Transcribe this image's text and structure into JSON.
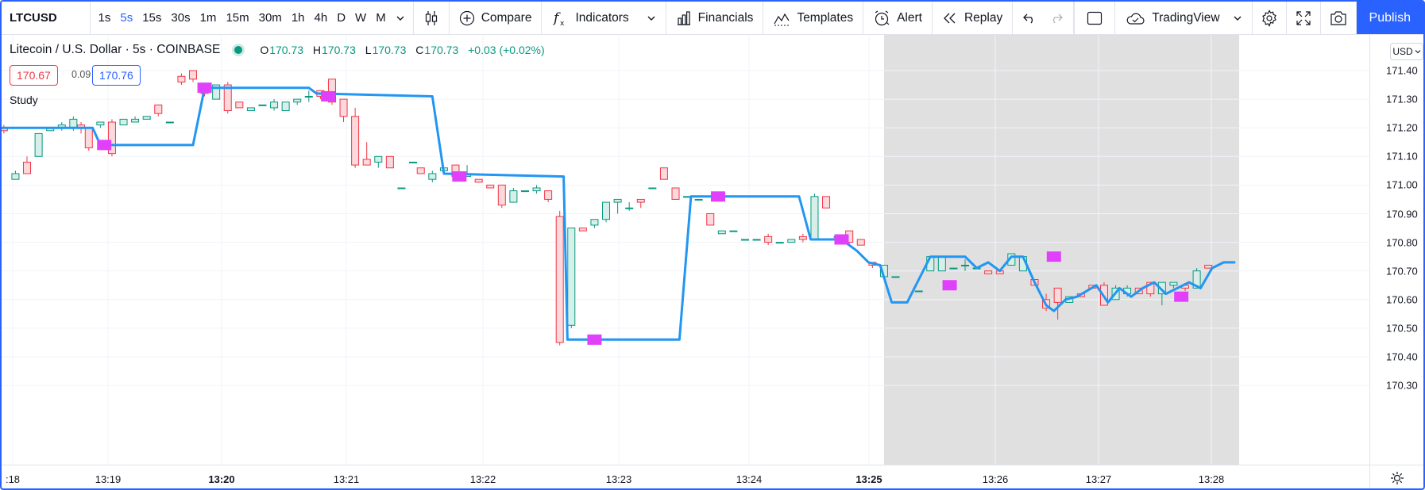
{
  "toolbar": {
    "symbol": "LTCUSD",
    "timeframes": [
      "1s",
      "5s",
      "15s",
      "30s",
      "1m",
      "15m",
      "30m",
      "1h",
      "4h",
      "D",
      "W",
      "M"
    ],
    "active_timeframe": "5s",
    "compare": "Compare",
    "indicators": "Indicators",
    "financials": "Financials",
    "templates": "Templates",
    "alert": "Alert",
    "replay": "Replay",
    "layout_name": "TradingView",
    "publish": "Publish"
  },
  "legend": {
    "title": "Litecoin / U.S. Dollar · 5s · COINBASE",
    "open": "170.73",
    "high": "170.73",
    "low": "170.73",
    "close": "170.73",
    "change": "+0.03 (+0.02%)",
    "bid": "170.67",
    "spread": "0.09",
    "ask": "170.76",
    "study": "Study"
  },
  "currency": "USD",
  "colors": {
    "accent": "#2962ff",
    "up": "#089981",
    "down": "#f23645",
    "study_line": "#2196f3",
    "marker": "#e040fb",
    "session_shade": "#dadada"
  },
  "chart_data": {
    "type": "candlestick",
    "y_ticks": [
      "171.40",
      "171.30",
      "171.20",
      "171.10",
      "171.00",
      "170.90",
      "170.80",
      "170.70",
      "170.60",
      "170.50",
      "170.40",
      "170.30"
    ],
    "ylim": [
      170.2,
      171.46
    ],
    "x_ticks": [
      {
        "label": ":18",
        "bold": false
      },
      {
        "label": "13:19",
        "bold": false
      },
      {
        "label": "13:20",
        "bold": true
      },
      {
        "label": "13:21",
        "bold": false
      },
      {
        "label": "13:22",
        "bold": false
      },
      {
        "label": "13:23",
        "bold": false
      },
      {
        "label": "13:24",
        "bold": false
      },
      {
        "label": "13:25",
        "bold": true
      },
      {
        "label": "13:26",
        "bold": false
      },
      {
        "label": "13:27",
        "bold": false
      },
      {
        "label": "13:28",
        "bold": false
      }
    ],
    "candles": [
      {
        "t": 0.5,
        "o": 171.2,
        "h": 171.21,
        "l": 171.18,
        "c": 171.19
      },
      {
        "t": 2,
        "o": 171.02,
        "h": 171.05,
        "l": 171.02,
        "c": 171.04
      },
      {
        "t": 3.5,
        "o": 171.08,
        "h": 171.1,
        "l": 171.04,
        "c": 171.04
      },
      {
        "t": 5,
        "o": 171.1,
        "h": 171.18,
        "l": 171.1,
        "c": 171.18
      },
      {
        "t": 6.5,
        "o": 171.19,
        "h": 171.2,
        "l": 171.19,
        "c": 171.2
      },
      {
        "t": 8,
        "o": 171.2,
        "h": 171.22,
        "l": 171.19,
        "c": 171.21
      },
      {
        "t": 9.5,
        "o": 171.2,
        "h": 171.24,
        "l": 171.19,
        "c": 171.23
      },
      {
        "t": 10.5,
        "o": 171.21,
        "h": 171.22,
        "l": 171.18,
        "c": 171.2
      },
      {
        "t": 11.5,
        "o": 171.2,
        "h": 171.2,
        "l": 171.12,
        "c": 171.13
      },
      {
        "t": 13,
        "o": 171.21,
        "h": 171.22,
        "l": 171.2,
        "c": 171.22
      },
      {
        "t": 14.5,
        "o": 171.22,
        "h": 171.23,
        "l": 171.1,
        "c": 171.11
      },
      {
        "t": 16,
        "o": 171.21,
        "h": 171.23,
        "l": 171.21,
        "c": 171.23
      },
      {
        "t": 17.5,
        "o": 171.22,
        "h": 171.24,
        "l": 171.22,
        "c": 171.23
      },
      {
        "t": 19,
        "o": 171.23,
        "h": 171.24,
        "l": 171.23,
        "c": 171.24
      },
      {
        "t": 20.5,
        "o": 171.28,
        "h": 171.28,
        "l": 171.24,
        "c": 171.25
      },
      {
        "t": 22,
        "o": 171.22,
        "h": 171.22,
        "l": 171.22,
        "c": 171.22
      },
      {
        "t": 23.5,
        "o": 171.38,
        "h": 171.39,
        "l": 171.35,
        "c": 171.36
      },
      {
        "t": 25,
        "o": 171.4,
        "h": 171.4,
        "l": 171.36,
        "c": 171.37
      },
      {
        "t": 26.5,
        "o": 171.34,
        "h": 171.35,
        "l": 171.31,
        "c": 171.32
      },
      {
        "t": 28,
        "o": 171.3,
        "h": 171.35,
        "l": 171.3,
        "c": 171.35
      },
      {
        "t": 29.5,
        "o": 171.35,
        "h": 171.36,
        "l": 171.25,
        "c": 171.26
      },
      {
        "t": 31,
        "o": 171.29,
        "h": 171.29,
        "l": 171.27,
        "c": 171.27
      },
      {
        "t": 32.5,
        "o": 171.26,
        "h": 171.27,
        "l": 171.26,
        "c": 171.27
      },
      {
        "t": 34,
        "o": 171.28,
        "h": 171.28,
        "l": 171.28,
        "c": 171.28
      },
      {
        "t": 35.5,
        "o": 171.27,
        "h": 171.3,
        "l": 171.26,
        "c": 171.29
      },
      {
        "t": 37,
        "o": 171.26,
        "h": 171.29,
        "l": 171.26,
        "c": 171.29
      },
      {
        "t": 38.5,
        "o": 171.29,
        "h": 171.3,
        "l": 171.28,
        "c": 171.3
      },
      {
        "t": 40,
        "o": 171.31,
        "h": 171.33,
        "l": 171.29,
        "c": 171.31
      },
      {
        "t": 41.5,
        "o": 171.33,
        "h": 171.33,
        "l": 171.3,
        "c": 171.31
      },
      {
        "t": 43,
        "o": 171.37,
        "h": 171.37,
        "l": 171.28,
        "c": 171.29
      },
      {
        "t": 44.5,
        "o": 171.3,
        "h": 171.3,
        "l": 171.22,
        "c": 171.24
      },
      {
        "t": 46,
        "o": 171.24,
        "h": 171.27,
        "l": 171.06,
        "c": 171.07
      },
      {
        "t": 47.5,
        "o": 171.09,
        "h": 171.15,
        "l": 171.07,
        "c": 171.07
      },
      {
        "t": 49,
        "o": 171.08,
        "h": 171.1,
        "l": 171.06,
        "c": 171.1
      },
      {
        "t": 50.5,
        "o": 171.1,
        "h": 171.1,
        "l": 171.06,
        "c": 171.06
      },
      {
        "t": 52,
        "o": 170.99,
        "h": 170.99,
        "l": 170.99,
        "c": 170.99
      },
      {
        "t": 53.5,
        "o": 171.08,
        "h": 171.08,
        "l": 171.08,
        "c": 171.08
      },
      {
        "t": 54.5,
        "o": 171.06,
        "h": 171.06,
        "l": 171.04,
        "c": 171.04
      },
      {
        "t": 56,
        "o": 171.02,
        "h": 171.05,
        "l": 171.01,
        "c": 171.04
      },
      {
        "t": 57.5,
        "o": 171.05,
        "h": 171.06,
        "l": 171.05,
        "c": 171.06
      },
      {
        "t": 59,
        "o": 171.07,
        "h": 171.07,
        "l": 171.03,
        "c": 171.03
      },
      {
        "t": 60.5,
        "o": 171.03,
        "h": 171.07,
        "l": 171.03,
        "c": 171.04
      },
      {
        "t": 62,
        "o": 171.02,
        "h": 171.02,
        "l": 171.01,
        "c": 171.01
      },
      {
        "t": 63.5,
        "o": 171.0,
        "h": 171.0,
        "l": 170.99,
        "c": 170.99
      },
      {
        "t": 65,
        "o": 171.0,
        "h": 171.0,
        "l": 170.92,
        "c": 170.93
      },
      {
        "t": 66.5,
        "o": 170.94,
        "h": 170.99,
        "l": 170.94,
        "c": 170.98
      },
      {
        "t": 68,
        "o": 170.98,
        "h": 170.98,
        "l": 170.98,
        "c": 170.98
      },
      {
        "t": 69.5,
        "o": 170.98,
        "h": 171.0,
        "l": 170.97,
        "c": 170.99
      },
      {
        "t": 71,
        "o": 170.98,
        "h": 170.98,
        "l": 170.94,
        "c": 170.95
      },
      {
        "t": 72.5,
        "o": 170.89,
        "h": 170.91,
        "l": 170.44,
        "c": 170.45
      },
      {
        "t": 74,
        "o": 170.51,
        "h": 170.85,
        "l": 170.5,
        "c": 170.85
      },
      {
        "t": 75.5,
        "o": 170.85,
        "h": 170.85,
        "l": 170.84,
        "c": 170.84
      },
      {
        "t": 77,
        "o": 170.86,
        "h": 170.88,
        "l": 170.85,
        "c": 170.88
      },
      {
        "t": 78.5,
        "o": 170.88,
        "h": 170.94,
        "l": 170.87,
        "c": 170.94
      },
      {
        "t": 80,
        "o": 170.94,
        "h": 170.95,
        "l": 170.9,
        "c": 170.95
      },
      {
        "t": 81.5,
        "o": 170.92,
        "h": 170.94,
        "l": 170.91,
        "c": 170.92
      },
      {
        "t": 83,
        "o": 170.95,
        "h": 170.95,
        "l": 170.92,
        "c": 170.94
      },
      {
        "t": 84.5,
        "o": 170.99,
        "h": 170.99,
        "l": 170.99,
        "c": 170.99
      },
      {
        "t": 86,
        "o": 171.06,
        "h": 171.06,
        "l": 171.02,
        "c": 171.02
      },
      {
        "t": 87.5,
        "o": 170.99,
        "h": 170.99,
        "l": 170.95,
        "c": 170.95
      },
      {
        "t": 89,
        "o": 170.96,
        "h": 170.96,
        "l": 170.96,
        "c": 170.96
      },
      {
        "t": 90.5,
        "o": 170.95,
        "h": 170.95,
        "l": 170.95,
        "c": 170.95
      },
      {
        "t": 92,
        "o": 170.9,
        "h": 170.9,
        "l": 170.86,
        "c": 170.86
      },
      {
        "t": 93.5,
        "o": 170.83,
        "h": 170.84,
        "l": 170.83,
        "c": 170.84
      },
      {
        "t": 95,
        "o": 170.84,
        "h": 170.84,
        "l": 170.84,
        "c": 170.84
      },
      {
        "t": 96.5,
        "o": 170.81,
        "h": 170.81,
        "l": 170.81,
        "c": 170.81
      },
      {
        "t": 98,
        "o": 170.81,
        "h": 170.81,
        "l": 170.81,
        "c": 170.81
      },
      {
        "t": 99.5,
        "o": 170.82,
        "h": 170.83,
        "l": 170.79,
        "c": 170.8
      },
      {
        "t": 101,
        "o": 170.8,
        "h": 170.8,
        "l": 170.8,
        "c": 170.8
      },
      {
        "t": 102.5,
        "o": 170.8,
        "h": 170.81,
        "l": 170.8,
        "c": 170.81
      },
      {
        "t": 104,
        "o": 170.82,
        "h": 170.83,
        "l": 170.8,
        "c": 170.81
      },
      {
        "t": 105.5,
        "o": 170.81,
        "h": 170.97,
        "l": 170.81,
        "c": 170.96
      },
      {
        "t": 107,
        "o": 170.96,
        "h": 170.96,
        "l": 170.92,
        "c": 170.92
      },
      {
        "t": 108.5,
        "o": 170.82,
        "h": 170.82,
        "l": 170.82,
        "c": 170.82
      },
      {
        "t": 110,
        "o": 170.84,
        "h": 170.84,
        "l": 170.79,
        "c": 170.8
      },
      {
        "t": 111.5,
        "o": 170.81,
        "h": 170.81,
        "l": 170.79,
        "c": 170.79
      },
      {
        "t": 113,
        "o": 170.73,
        "h": 170.73,
        "l": 170.71,
        "c": 170.72
      },
      {
        "t": 114.5,
        "o": 170.68,
        "h": 170.72,
        "l": 170.68,
        "c": 170.72
      },
      {
        "t": 116,
        "o": 170.68,
        "h": 170.68,
        "l": 170.68,
        "c": 170.68
      },
      {
        "t": 119,
        "o": 170.63,
        "h": 170.63,
        "l": 170.63,
        "c": 170.63
      },
      {
        "t": 120.5,
        "o": 170.7,
        "h": 170.75,
        "l": 170.7,
        "c": 170.75
      },
      {
        "t": 122,
        "o": 170.7,
        "h": 170.75,
        "l": 170.7,
        "c": 170.75
      },
      {
        "t": 123.5,
        "o": 170.71,
        "h": 170.71,
        "l": 170.71,
        "c": 170.71
      },
      {
        "t": 125,
        "o": 170.72,
        "h": 170.74,
        "l": 170.7,
        "c": 170.72
      },
      {
        "t": 126.5,
        "o": 170.71,
        "h": 170.71,
        "l": 170.71,
        "c": 170.71
      },
      {
        "t": 128,
        "o": 170.7,
        "h": 170.7,
        "l": 170.69,
        "c": 170.69
      },
      {
        "t": 129.5,
        "o": 170.7,
        "h": 170.7,
        "l": 170.69,
        "c": 170.69
      },
      {
        "t": 131,
        "o": 170.72,
        "h": 170.76,
        "l": 170.72,
        "c": 170.76
      },
      {
        "t": 132.5,
        "o": 170.7,
        "h": 170.75,
        "l": 170.7,
        "c": 170.75
      },
      {
        "t": 134,
        "o": 170.67,
        "h": 170.67,
        "l": 170.65,
        "c": 170.65
      },
      {
        "t": 135.5,
        "o": 170.6,
        "h": 170.62,
        "l": 170.56,
        "c": 170.57
      },
      {
        "t": 137,
        "o": 170.64,
        "h": 170.64,
        "l": 170.53,
        "c": 170.59
      },
      {
        "t": 138.5,
        "o": 170.59,
        "h": 170.61,
        "l": 170.59,
        "c": 170.61
      },
      {
        "t": 140,
        "o": 170.62,
        "h": 170.62,
        "l": 170.61,
        "c": 170.61
      },
      {
        "t": 141.5,
        "o": 170.65,
        "h": 170.65,
        "l": 170.64,
        "c": 170.64
      },
      {
        "t": 143,
        "o": 170.65,
        "h": 170.66,
        "l": 170.58,
        "c": 170.58
      },
      {
        "t": 144.5,
        "o": 170.6,
        "h": 170.65,
        "l": 170.6,
        "c": 170.64
      },
      {
        "t": 146,
        "o": 170.62,
        "h": 170.65,
        "l": 170.61,
        "c": 170.64
      },
      {
        "t": 147.5,
        "o": 170.64,
        "h": 170.64,
        "l": 170.62,
        "c": 170.62
      },
      {
        "t": 149,
        "o": 170.66,
        "h": 170.66,
        "l": 170.61,
        "c": 170.62
      },
      {
        "t": 150.5,
        "o": 170.62,
        "h": 170.66,
        "l": 170.58,
        "c": 170.66
      },
      {
        "t": 152,
        "o": 170.65,
        "h": 170.66,
        "l": 170.64,
        "c": 170.66
      },
      {
        "t": 153.5,
        "o": 170.65,
        "h": 170.65,
        "l": 170.63,
        "c": 170.64
      },
      {
        "t": 155,
        "o": 170.64,
        "h": 170.71,
        "l": 170.64,
        "c": 170.7
      },
      {
        "t": 156.5,
        "o": 170.72,
        "h": 170.72,
        "l": 170.71,
        "c": 170.71
      }
    ],
    "study_line": [
      [
        0,
        171.2
      ],
      [
        12,
        171.2
      ],
      [
        13,
        171.14
      ],
      [
        25,
        171.14
      ],
      [
        26.5,
        171.34
      ],
      [
        40,
        171.34
      ],
      [
        41,
        171.32
      ],
      [
        56,
        171.31
      ],
      [
        57.5,
        171.04
      ],
      [
        73,
        171.03
      ],
      [
        73.5,
        170.46
      ],
      [
        88,
        170.46
      ],
      [
        89.5,
        170.96
      ],
      [
        103.5,
        170.96
      ],
      [
        105,
        170.81
      ],
      [
        109,
        170.81
      ],
      [
        111,
        170.77
      ],
      [
        112.5,
        170.73
      ],
      [
        114,
        170.72
      ],
      [
        115.5,
        170.59
      ],
      [
        117.5,
        170.59
      ],
      [
        119,
        170.67
      ],
      [
        120.5,
        170.75
      ],
      [
        125,
        170.75
      ],
      [
        126.5,
        170.71
      ],
      [
        128,
        170.73
      ],
      [
        129.5,
        170.7
      ],
      [
        131,
        170.75
      ],
      [
        132.5,
        170.75
      ],
      [
        134,
        170.66
      ],
      [
        135.5,
        170.58
      ],
      [
        136.5,
        170.56
      ],
      [
        138,
        170.6
      ],
      [
        139.5,
        170.61
      ],
      [
        142,
        170.65
      ],
      [
        143.5,
        170.59
      ],
      [
        145,
        170.64
      ],
      [
        146.5,
        170.61
      ],
      [
        148,
        170.64
      ],
      [
        149.5,
        170.66
      ],
      [
        151,
        170.62
      ],
      [
        152.5,
        170.64
      ],
      [
        154,
        170.66
      ],
      [
        155.5,
        170.64
      ],
      [
        157,
        170.71
      ],
      [
        158.5,
        170.73
      ],
      [
        160,
        170.73
      ]
    ],
    "markers": [
      [
        13.5,
        171.14
      ],
      [
        26.5,
        171.34
      ],
      [
        42.5,
        171.31
      ],
      [
        59.5,
        171.03
      ],
      [
        77,
        170.46
      ],
      [
        93,
        170.96
      ],
      [
        109,
        170.81
      ],
      [
        123,
        170.65
      ],
      [
        136.5,
        170.75
      ],
      [
        153,
        170.61
      ]
    ],
    "session_shade": {
      "from_bar": 114.5,
      "to_bar": 160.5
    }
  }
}
